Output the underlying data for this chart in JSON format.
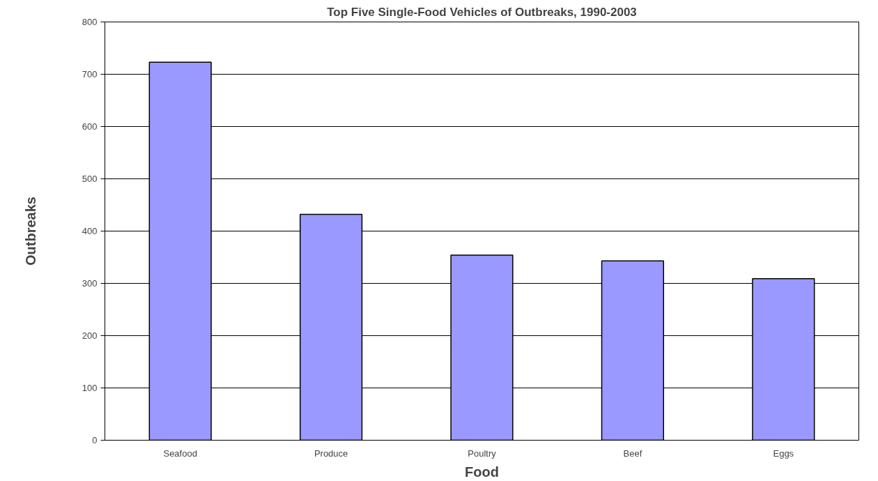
{
  "chart_data": {
    "type": "bar",
    "title": "Top Five Single-Food Vehicles of Outbreaks, 1990-2003",
    "xlabel": "Food",
    "ylabel": "Outbreaks",
    "categories": [
      "Seafood",
      "Produce",
      "Poultry",
      "Beef",
      "Eggs"
    ],
    "values": [
      723,
      432,
      354,
      343,
      309
    ],
    "color": "#9999ff",
    "ylim": [
      0,
      800
    ],
    "yticks": [
      0,
      100,
      200,
      300,
      400,
      500,
      600,
      700,
      800
    ],
    "grid": "y"
  }
}
